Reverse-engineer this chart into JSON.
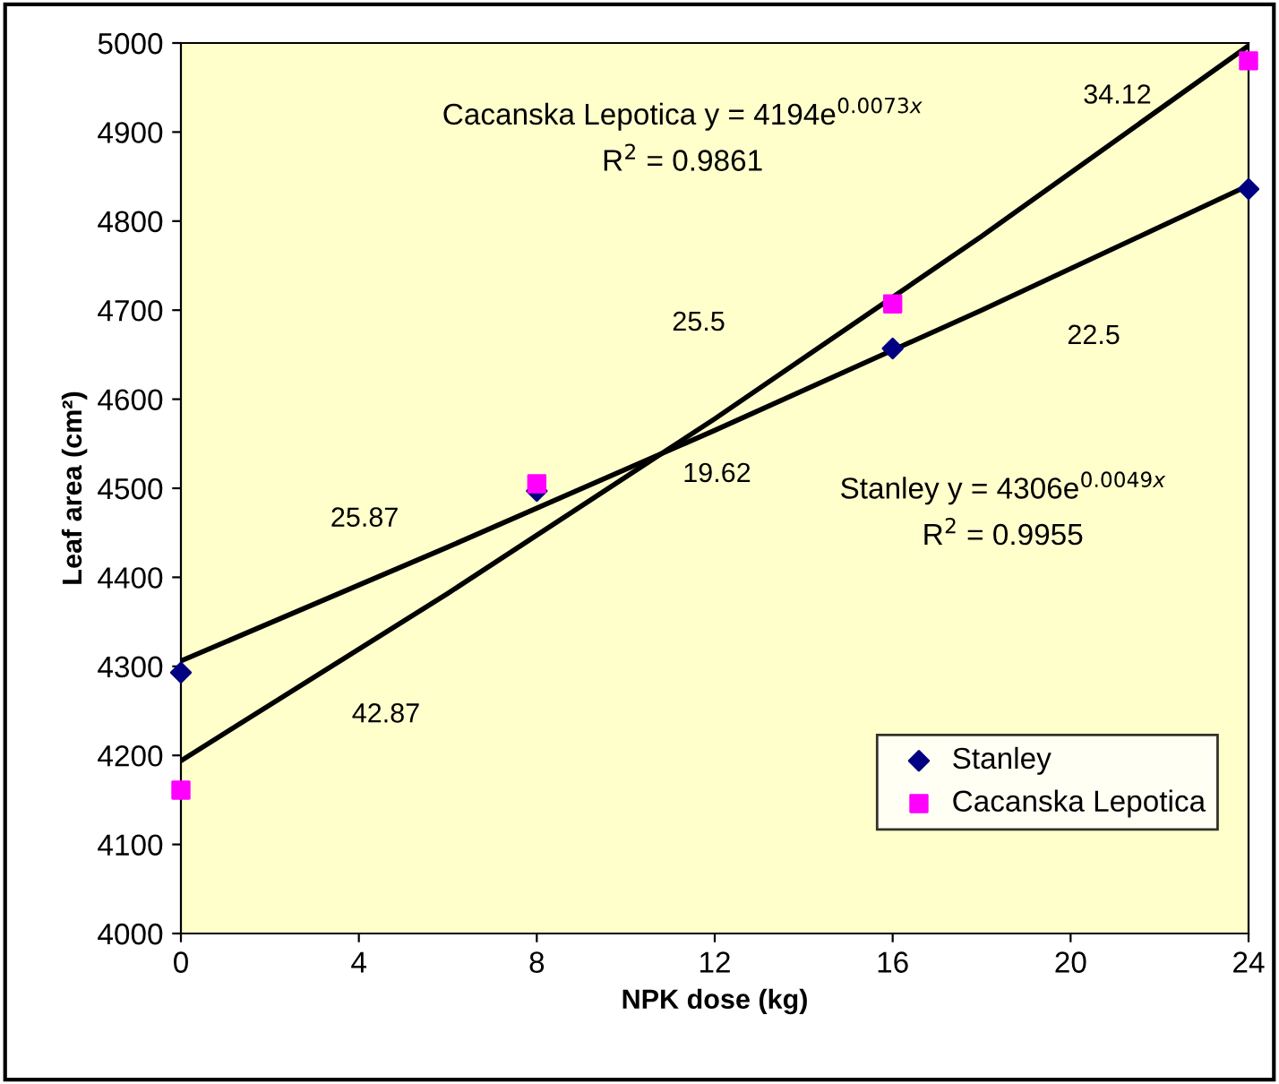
{
  "chart_data": {
    "type": "scatter",
    "xlabel": "NPK dose (kg)",
    "ylabel": "Leaf area (cm²)",
    "x": [
      0,
      8,
      16,
      24
    ],
    "series": [
      {
        "name": "Stanley",
        "color": "#000080",
        "marker": "diamond",
        "values": [
          4293,
          4497,
          4657,
          4836
        ]
      },
      {
        "name": "Cacanska Lepotica",
        "color": "#ff00ff",
        "marker": "square",
        "values": [
          4161,
          4505,
          4707,
          4980
        ]
      },
      {
        "type": "line",
        "color": "#000000",
        "marker": "none",
        "x": [
          0,
          6,
          12,
          18,
          24
        ],
        "values": [
          4306,
          4434,
          4565,
          4700,
          4840
        ]
      },
      {
        "type": "line",
        "color": "#000000",
        "marker": "none",
        "x": [
          0,
          6,
          12,
          18,
          24
        ],
        "values": [
          4194,
          4382,
          4578,
          4783,
          4997
        ]
      }
    ],
    "annotations": [
      "Cacanska Lepotica y = 4194e$^{0.0073x}$",
      "R$^{2}$ = 0.9861",
      "Stanley y = 4306e$^{0.0049x}$",
      "R$^{2}$ = 0.9955",
      "34.12",
      "22.5",
      "25.5",
      "19.62",
      "25.87",
      "42.87"
    ],
    "xlim": [
      0,
      24
    ],
    "xticks": [
      0,
      4,
      8,
      12,
      16,
      20,
      24
    ],
    "ylim": [
      4000,
      5000
    ],
    "yticks": [
      4000,
      4100,
      4200,
      4300,
      4400,
      4500,
      4600,
      4700,
      4800,
      4900,
      5000
    ],
    "grid": false,
    "legend": "bottom right"
  }
}
